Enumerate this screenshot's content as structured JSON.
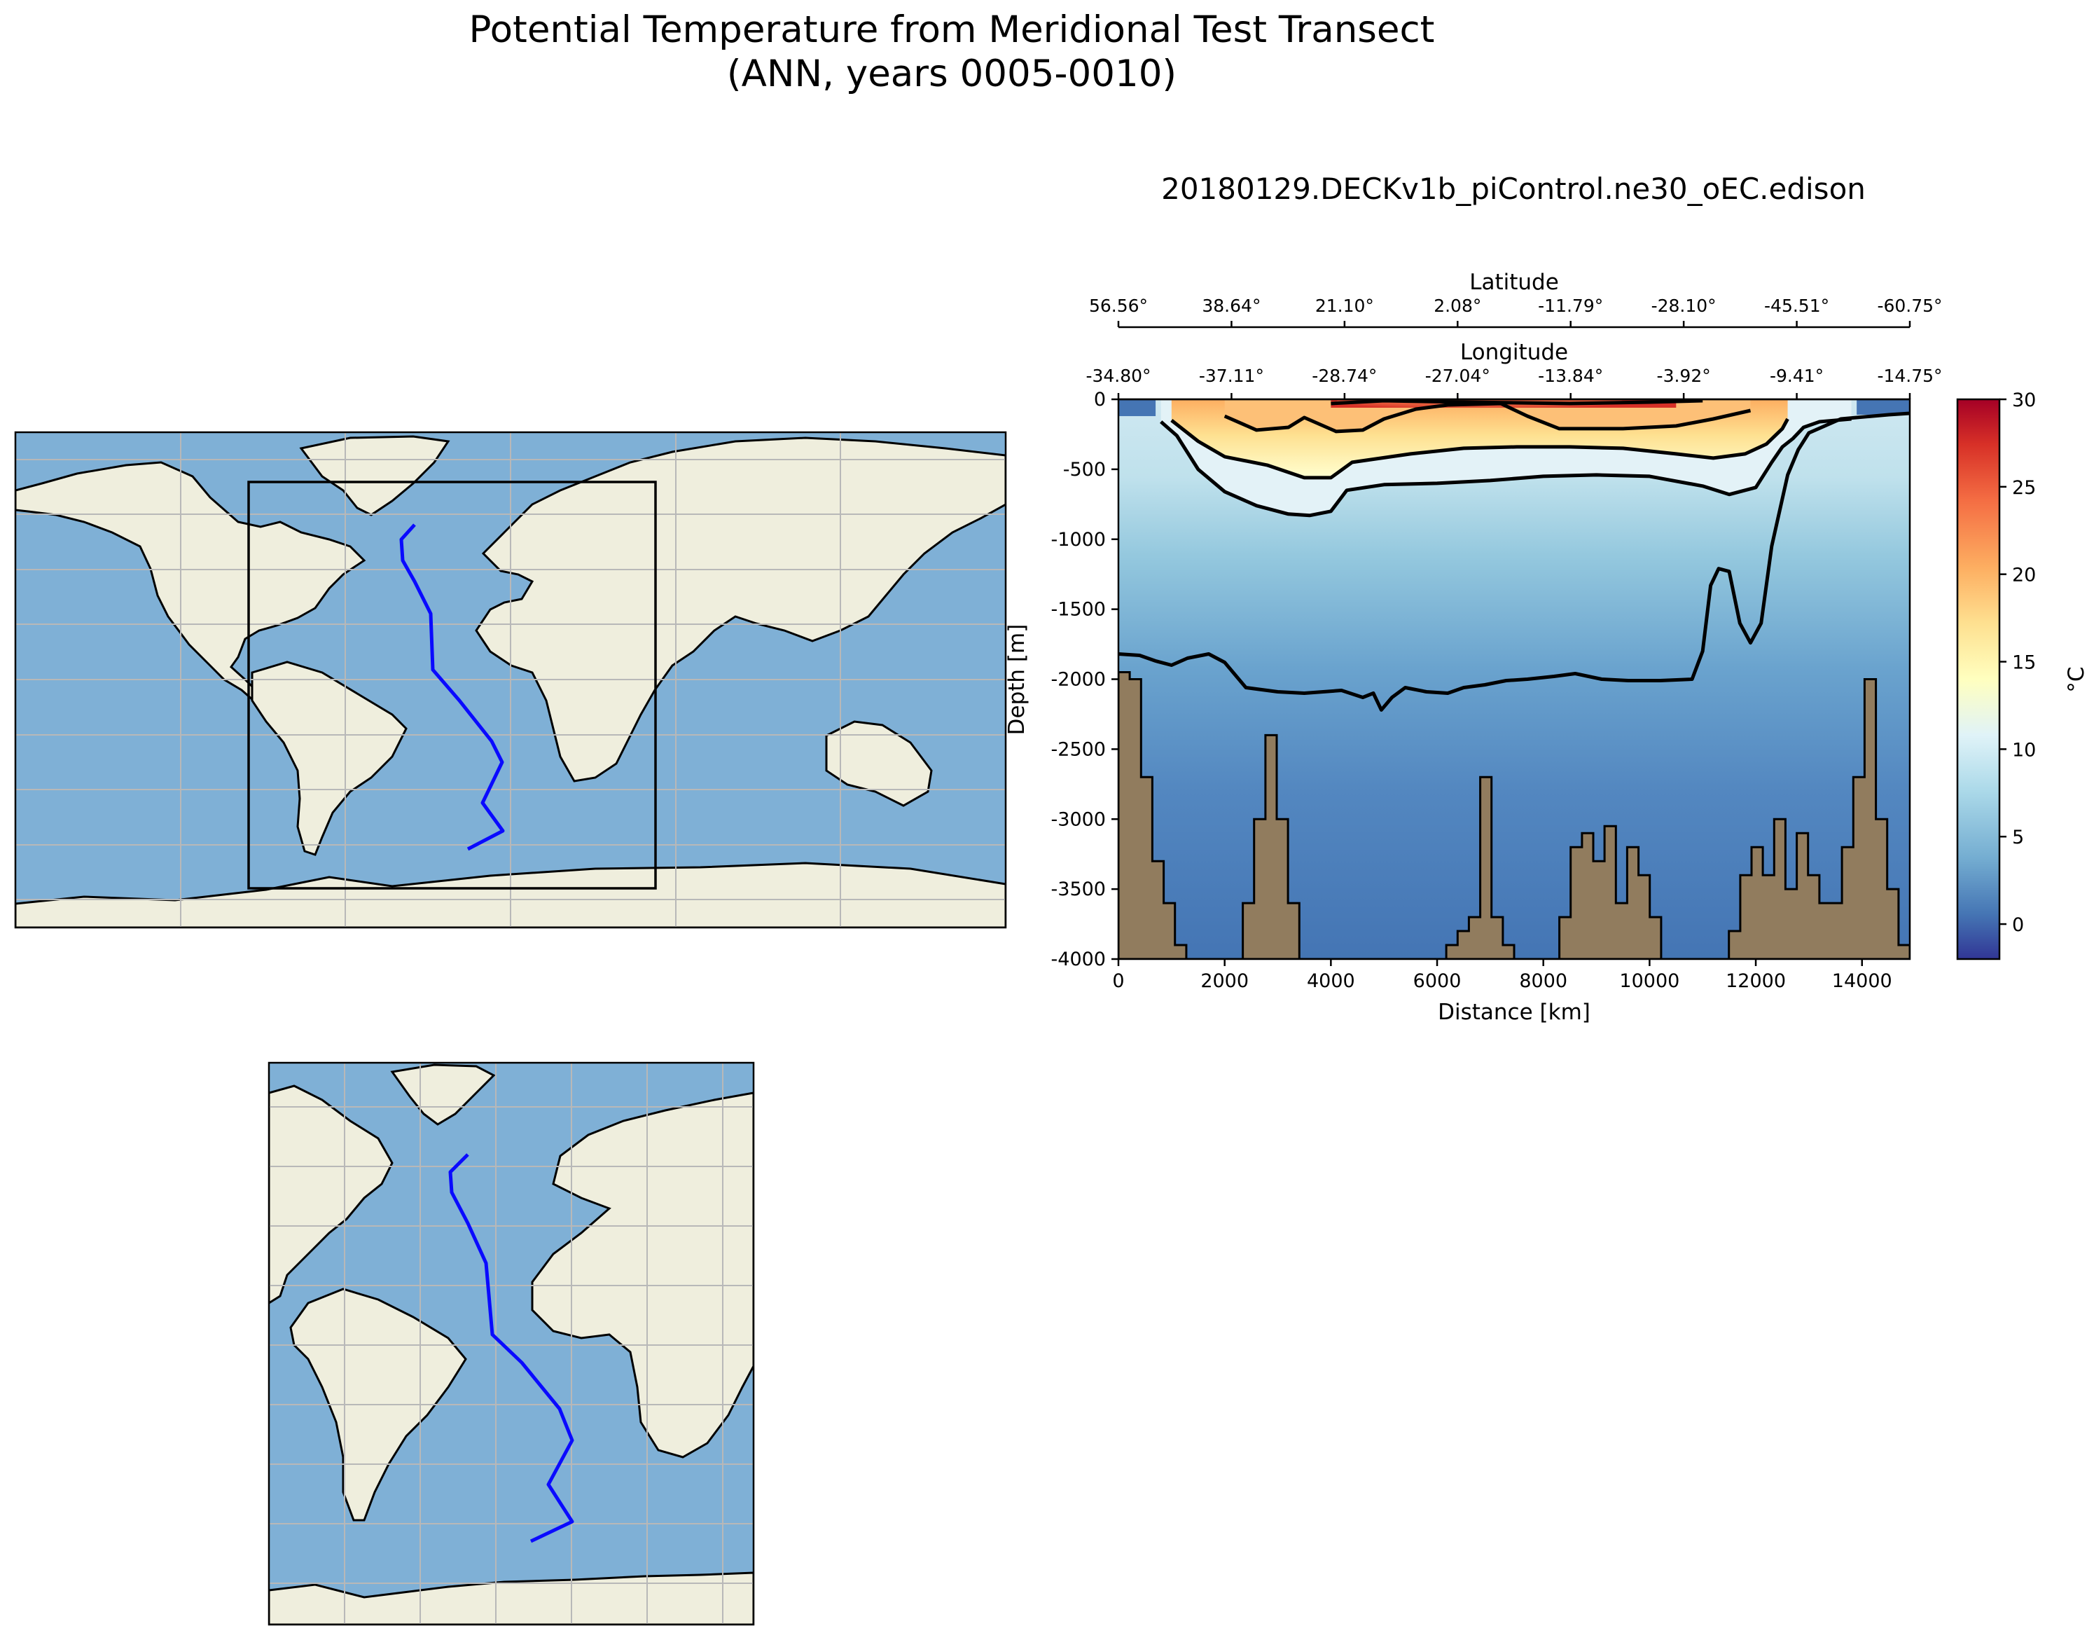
{
  "figure": {
    "title_line1": "Potential Temperature from Meridional Test Transect",
    "title_line2": "(ANN, years 0005-0010)",
    "subplot_title": "20180129.DECKv1b_piControl.ne30_oEC.edison"
  },
  "colors": {
    "ocean": "#7fb0d6",
    "land": "#efeedd",
    "grid": "#b8b8b8",
    "transect": "#0a0aff",
    "bathymetry": "#917c5e",
    "contour": "#000000"
  },
  "chart_data": [
    {
      "type": "heatmap",
      "title": "20180129.DECKv1b_piControl.ne30_oEC.edison",
      "xlabel": "Distance [km]",
      "ylabel": "Depth [m]",
      "xlim": [
        0,
        14900
      ],
      "ylim": [
        -4000,
        0
      ],
      "xticks": [
        0,
        2000,
        4000,
        6000,
        8000,
        10000,
        12000,
        14000
      ],
      "yticks": [
        0,
        -500,
        -1000,
        -1500,
        -2000,
        -2500,
        -3000,
        -3500,
        -4000
      ],
      "top_axes": {
        "latitude_label": "Latitude",
        "longitude_label": "Longitude",
        "latitude_ticks": [
          "56.56°",
          "38.64°",
          "21.10°",
          "2.08°",
          "-11.79°",
          "-28.10°",
          "-45.51°",
          "-60.75°"
        ],
        "longitude_ticks": [
          "-34.80°",
          "-37.11°",
          "-28.74°",
          "-27.04°",
          "-13.84°",
          "-3.92°",
          "-9.41°",
          "-14.75°"
        ]
      },
      "colorbar": {
        "label": "°C",
        "range": [
          -2,
          30
        ],
        "ticks": [
          0,
          5,
          10,
          15,
          20,
          25,
          30
        ],
        "colormap": "RdYlBu_r"
      },
      "contours": [
        {
          "level": 3,
          "points": [
            [
              0,
              -1820
            ],
            [
              400,
              -1830
            ],
            [
              700,
              -1870
            ],
            [
              1000,
              -1900
            ],
            [
              1300,
              -1850
            ],
            [
              1700,
              -1820
            ],
            [
              2000,
              -1880
            ],
            [
              2400,
              -2060
            ],
            [
              3000,
              -2090
            ],
            [
              3500,
              -2100
            ],
            [
              4200,
              -2080
            ],
            [
              4600,
              -2130
            ],
            [
              4800,
              -2100
            ],
            [
              4950,
              -2220
            ],
            [
              5150,
              -2130
            ],
            [
              5400,
              -2060
            ],
            [
              5800,
              -2090
            ],
            [
              6200,
              -2100
            ],
            [
              6500,
              -2060
            ],
            [
              6900,
              -2040
            ],
            [
              7300,
              -2010
            ],
            [
              7700,
              -2000
            ],
            [
              8200,
              -1980
            ],
            [
              8600,
              -1960
            ],
            [
              9100,
              -2000
            ],
            [
              9600,
              -2010
            ],
            [
              10200,
              -2010
            ],
            [
              10800,
              -2000
            ],
            [
              11000,
              -1800
            ],
            [
              11150,
              -1330
            ],
            [
              11300,
              -1210
            ],
            [
              11500,
              -1230
            ],
            [
              11700,
              -1600
            ],
            [
              11900,
              -1740
            ],
            [
              12100,
              -1600
            ],
            [
              12300,
              -1050
            ],
            [
              12600,
              -540
            ],
            [
              12800,
              -360
            ],
            [
              13000,
              -240
            ],
            [
              13600,
              -140
            ],
            [
              14500,
              -110
            ],
            [
              14900,
              -100
            ]
          ]
        },
        {
          "level": 8,
          "points": [
            [
              800,
              -160
            ],
            [
              1100,
              -260
            ],
            [
              1500,
              -500
            ],
            [
              2000,
              -660
            ],
            [
              2600,
              -760
            ],
            [
              3200,
              -820
            ],
            [
              3600,
              -830
            ],
            [
              4000,
              -800
            ],
            [
              4300,
              -650
            ],
            [
              5000,
              -610
            ],
            [
              6000,
              -600
            ],
            [
              7000,
              -580
            ],
            [
              8000,
              -550
            ],
            [
              9000,
              -540
            ],
            [
              10000,
              -550
            ],
            [
              11000,
              -620
            ],
            [
              11500,
              -680
            ],
            [
              12000,
              -630
            ],
            [
              12300,
              -450
            ],
            [
              12500,
              -340
            ],
            [
              12700,
              -280
            ],
            [
              12900,
              -200
            ],
            [
              13200,
              -160
            ],
            [
              13800,
              -140
            ]
          ]
        },
        {
          "level": 12,
          "points": [
            [
              1000,
              -150
            ],
            [
              1500,
              -300
            ],
            [
              2000,
              -410
            ],
            [
              2800,
              -470
            ],
            [
              3500,
              -560
            ],
            [
              4000,
              -560
            ],
            [
              4400,
              -450
            ],
            [
              5500,
              -390
            ],
            [
              6500,
              -350
            ],
            [
              7500,
              -340
            ],
            [
              8500,
              -340
            ],
            [
              9500,
              -350
            ],
            [
              10500,
              -390
            ],
            [
              11200,
              -420
            ],
            [
              11800,
              -390
            ],
            [
              12200,
              -320
            ],
            [
              12500,
              -210
            ],
            [
              12600,
              -140
            ]
          ]
        },
        {
          "level": 16,
          "points": [
            [
              2000,
              -120
            ],
            [
              2600,
              -220
            ],
            [
              3200,
              -200
            ],
            [
              3500,
              -130
            ],
            [
              4100,
              -230
            ],
            [
              4600,
              -220
            ],
            [
              5000,
              -140
            ],
            [
              5600,
              -70
            ],
            [
              6200,
              -40
            ],
            [
              7200,
              -30
            ],
            [
              7700,
              -120
            ],
            [
              8300,
              -210
            ],
            [
              9500,
              -210
            ],
            [
              10500,
              -190
            ],
            [
              11200,
              -140
            ],
            [
              11900,
              -80
            ]
          ]
        },
        {
          "level": 22,
          "points": [
            [
              4000,
              -30
            ],
            [
              5000,
              -10
            ],
            [
              6500,
              -20
            ],
            [
              8500,
              -30
            ],
            [
              10000,
              -20
            ],
            [
              11000,
              -10
            ]
          ]
        }
      ],
      "bathymetry_depth_m": [
        -1950,
        -2000,
        -2700,
        -3300,
        -3600,
        -3900,
        -4000,
        -4000,
        -4000,
        -4000,
        -4000,
        -3600,
        -3000,
        -2400,
        -3000,
        -3600,
        -4000,
        -4000,
        -4000,
        -4000,
        -4000,
        -4000,
        -4000,
        -4000,
        -4000,
        -4000,
        -4000,
        -4000,
        -4000,
        -3900,
        -3800,
        -3700,
        -2700,
        -3700,
        -3900,
        -4000,
        -4000,
        -4000,
        -4000,
        -3700,
        -3200,
        -3100,
        -3300,
        -3050,
        -3600,
        -3200,
        -3400,
        -3700,
        -4000,
        -4000,
        -4000,
        -4000,
        -4000,
        -4000,
        -3800,
        -3400,
        -3200,
        -3400,
        -3000,
        -3500,
        -3100,
        -3400,
        -3600,
        -3600,
        -3200,
        -2700,
        -2000,
        -3000,
        -3500,
        -3900
      ]
    },
    {
      "type": "map",
      "name": "global transect locator map",
      "transect_lonlat": [
        [
          -25,
          71
        ],
        [
          -33,
          65
        ],
        [
          -32,
          58
        ],
        [
          -25,
          43
        ],
        [
          -20,
          31
        ],
        [
          -19,
          13
        ],
        [
          -13,
          -1
        ],
        [
          -4,
          -18
        ],
        [
          -1,
          -28
        ],
        [
          -6,
          -41
        ],
        [
          -1,
          -50
        ],
        [
          -10,
          -58
        ]
      ],
      "box_lon": [
        -52,
        8
      ],
      "box_lat": [
        -85,
        72
      ]
    },
    {
      "type": "map",
      "name": "zoomed transect map",
      "transect_lonlat": [
        [
          -25,
          71
        ],
        [
          -33,
          65
        ],
        [
          -32,
          58
        ],
        [
          -25,
          43
        ],
        [
          -20,
          31
        ],
        [
          -19,
          13
        ],
        [
          -13,
          -1
        ],
        [
          -4,
          -18
        ],
        [
          -1,
          -28
        ],
        [
          -6,
          -41
        ],
        [
          -1,
          -50
        ],
        [
          -10,
          -58
        ]
      ]
    }
  ]
}
